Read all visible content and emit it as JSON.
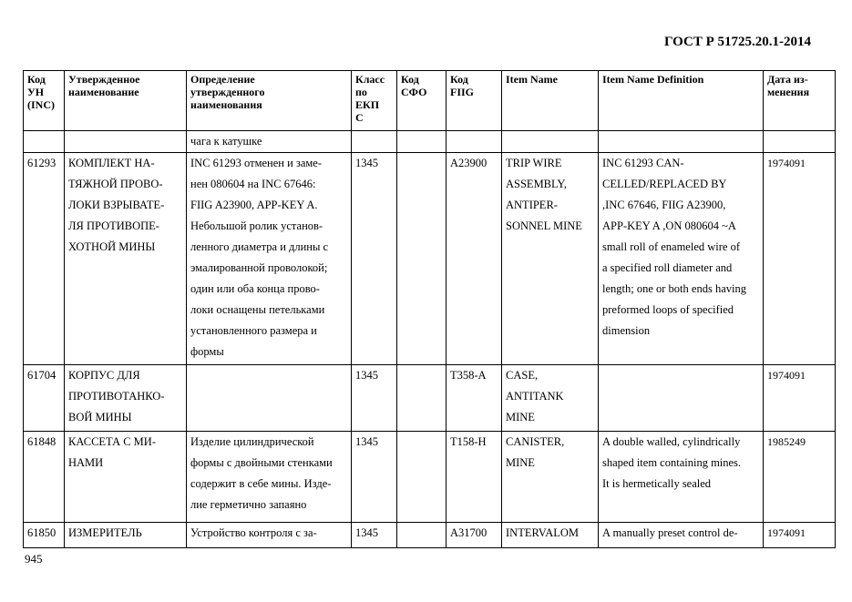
{
  "header": "ГОСТ Р 51725.20.1-2014",
  "page_number": "945",
  "columns": [
    [
      "Код",
      "УН",
      "(INC)"
    ],
    [
      "Утвержденное",
      "наименование"
    ],
    [
      "Определение",
      "утвержденного",
      "наименования"
    ],
    [
      "Класс",
      "по",
      "ЕКП",
      "С"
    ],
    [
      "Код",
      "СФО"
    ],
    [
      "Код",
      "FIIG"
    ],
    [
      "Item Name"
    ],
    [
      "Item Name Definition"
    ],
    [
      "Дата из-",
      "менения"
    ]
  ],
  "rows": [
    {
      "inc": [],
      "name": [],
      "def": [
        "чага к катушке"
      ],
      "cls": [],
      "sfo": [],
      "fiig": [],
      "item": [],
      "itemdef": [],
      "date": []
    },
    {
      "inc": [
        "61293"
      ],
      "name": [
        "КОМПЛЕКТ НА-",
        "ТЯЖНОЙ ПРОВО-",
        "ЛОКИ ВЗРЫВАТЕ-",
        "ЛЯ ПРОТИВОПЕ-",
        "ХОТНОЙ МИНЫ"
      ],
      "def": [
        "INC 61293 отменен и заме-",
        "нен 080604 на INC 67646:",
        "FIIG A23900, APP-KEY A.",
        "Небольшой ролик установ-",
        "ленного диаметра и длины с",
        "эмалированной проволокой;",
        "один или оба конца прово-",
        "локи оснащены петельками",
        "установленного размера и",
        "формы"
      ],
      "cls": [
        "1345"
      ],
      "sfo": [],
      "fiig": [
        "A23900"
      ],
      "item": [
        "TRIP WIRE",
        "ASSEMBLY,",
        "ANTIPER-",
        "SONNEL MINE"
      ],
      "itemdef": [
        "INC 61293 CAN-",
        "CELLED/REPLACED BY",
        ",INC 67646, FIIG A23900,",
        "APP-KEY A  ,ON 080604 ~A",
        "small roll of enameled wire of",
        "a specified roll diameter and",
        "length; one or both ends having",
        "preformed loops of specified",
        "dimension"
      ],
      "date": [
        "1974091"
      ]
    },
    {
      "inc": [
        "61704"
      ],
      "name": [
        "КОРПУС ДЛЯ",
        "ПРОТИВОТАНКО-",
        "ВОЙ МИНЫ"
      ],
      "def": [],
      "cls": [
        "1345"
      ],
      "sfo": [],
      "fiig": [
        "T358-A"
      ],
      "item": [
        "CASE,",
        "ANTITANK",
        "MINE"
      ],
      "itemdef": [],
      "date": [
        "1974091"
      ]
    },
    {
      "inc": [
        "61848"
      ],
      "name": [
        "КАССЕТА С МИ-",
        "НАМИ"
      ],
      "def": [
        "Изделие цилиндрической",
        "формы с двойными стенками",
        "содержит в себе мины. Изде-",
        "лие герметично запаяно"
      ],
      "cls": [
        "1345"
      ],
      "sfo": [],
      "fiig": [
        "T158-H"
      ],
      "item": [
        "CANISTER,",
        "MINE"
      ],
      "itemdef": [
        "A double walled, cylindrically",
        "shaped item containing mines.",
        "It is hermetically sealed"
      ],
      "date": [
        "1985249"
      ]
    },
    {
      "inc": [
        "61850"
      ],
      "name": [
        "ИЗМЕРИТЕЛЬ"
      ],
      "def": [
        "Устройство контроля с за-"
      ],
      "cls": [
        "1345"
      ],
      "sfo": [],
      "fiig": [
        "A31700"
      ],
      "item": [
        "INTERVALOM"
      ],
      "itemdef": [
        "A manually preset control de-"
      ],
      "date": [
        "1974091"
      ]
    }
  ]
}
